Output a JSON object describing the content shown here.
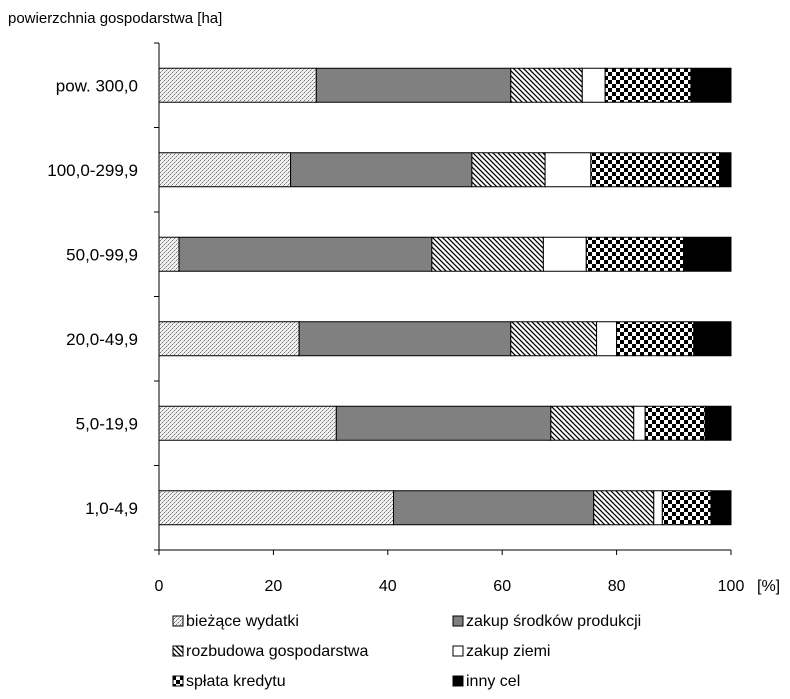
{
  "chart_data": {
    "type": "bar",
    "orientation": "horizontal",
    "stacked": true,
    "ylabel": "powierzchnia gospodarstwa [ha]",
    "x_unit": "[%]",
    "xlim": [
      0,
      100
    ],
    "x_ticks": [
      "0",
      "20",
      "40",
      "60",
      "80",
      "100"
    ],
    "categories": [
      "pow. 300,0",
      "100,0-299,9",
      "50,0-99,9",
      "20,0-49,9",
      "5,0-19,9",
      "1,0-4,9"
    ],
    "series": [
      {
        "name": "bieżące wydatki",
        "pattern": "dots",
        "values": [
          27.5,
          23.0,
          3.5,
          24.5,
          31.0,
          41.0
        ]
      },
      {
        "name": "zakup środków produkcji",
        "pattern": "solid-gray",
        "values": [
          34.0,
          31.7,
          44.2,
          37.0,
          37.5,
          35.0
        ]
      },
      {
        "name": "rozbudowa gospodarstwa",
        "pattern": "diagonal",
        "values": [
          12.5,
          12.8,
          19.5,
          15.0,
          14.5,
          10.5
        ]
      },
      {
        "name": "zakup ziemi",
        "pattern": "white",
        "values": [
          4.0,
          8.0,
          7.5,
          3.5,
          2.0,
          1.5
        ]
      },
      {
        "name": "spłata kredytu",
        "pattern": "checker",
        "values": [
          15.0,
          22.5,
          17.0,
          13.5,
          10.5,
          8.5
        ]
      },
      {
        "name": "inny cel",
        "pattern": "black",
        "values": [
          7.0,
          2.0,
          8.3,
          6.5,
          4.5,
          3.5
        ]
      }
    ],
    "grid": false,
    "legend": "bottom"
  }
}
